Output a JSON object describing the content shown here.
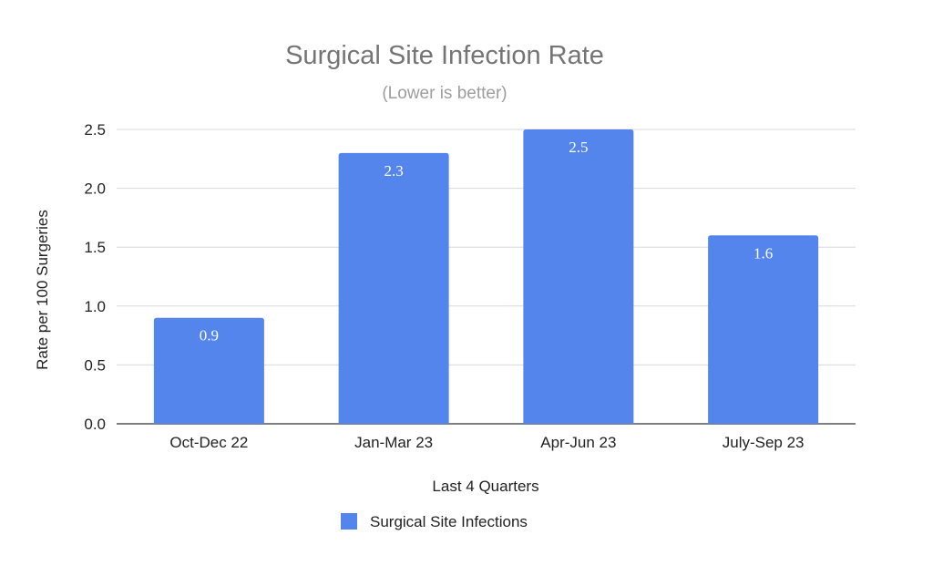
{
  "chart_data": {
    "type": "bar",
    "title": "Surgical Site Infection Rate",
    "subtitle": "(Lower is better)",
    "xlabel": "Last 4 Quarters",
    "ylabel": "Rate per 100 Surgeries",
    "categories": [
      "Oct-Dec 22",
      "Jan-Mar 23",
      "Apr-Jun 23",
      "July-Sep 23"
    ],
    "series": [
      {
        "name": "Surgical Site Infections",
        "values": [
          0.9,
          2.3,
          2.5,
          1.6
        ],
        "color": "#5385ec"
      }
    ],
    "data_labels": [
      "0.9",
      "2.3",
      "2.5",
      "1.6"
    ],
    "yticks": [
      "0.0",
      "0.5",
      "1.0",
      "1.5",
      "2.0",
      "2.5"
    ],
    "ylim": [
      0,
      2.5
    ],
    "grid": true,
    "legend_position": "bottom"
  }
}
